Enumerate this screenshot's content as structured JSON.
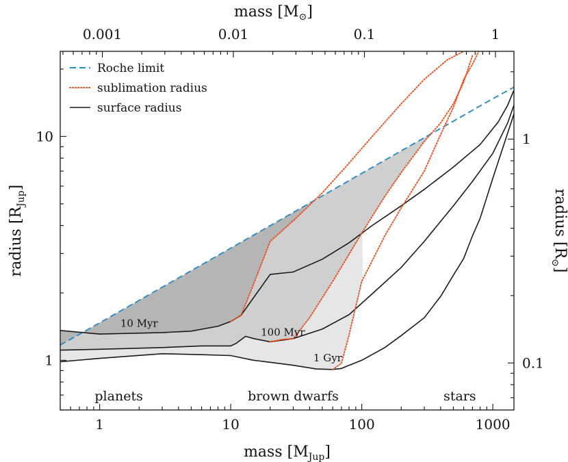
{
  "chart_data": {
    "type": "line",
    "x_axis": {
      "label": "mass [M",
      "sub": "Jup",
      "suffix": "]",
      "scale": "log",
      "lim": [
        0.5,
        1450
      ],
      "ticks": [
        1,
        10,
        100,
        1000
      ],
      "tick_labels": [
        "1",
        "10",
        "100",
        "1000"
      ]
    },
    "y_axis": {
      "label": "radius [R",
      "sub": "Jup",
      "suffix": "]",
      "scale": "log",
      "lim": [
        0.6,
        24
      ],
      "ticks": [
        1,
        10
      ],
      "tick_labels": [
        "1",
        "10"
      ]
    },
    "top_axis": {
      "label": "mass [M",
      "sub": "⊙",
      "suffix": "]",
      "ticks_rjup_equiv": [
        1.048,
        10.48,
        104.8,
        1048
      ],
      "tick_labels": [
        "0.001",
        "0.01",
        "0.1",
        "1"
      ]
    },
    "right_axis": {
      "label": "radius [R",
      "sub": "⊙",
      "suffix": "]",
      "ticks_rjup_equiv": [
        0.973,
        9.73
      ],
      "tick_labels": [
        "0.1",
        "1"
      ]
    },
    "legend": [
      {
        "label": "Roche limit",
        "style": "dashed",
        "color": "#2b8cbe"
      },
      {
        "label": "sublimation radius",
        "style": "dotted",
        "color": "#e8501e"
      },
      {
        "label": "surface radius",
        "style": "solid",
        "color": "#1a1a1a"
      }
    ],
    "series": [
      {
        "name": "Roche limit",
        "color": "#2b8cbe",
        "style": "dashed",
        "x": [
          0.5,
          1,
          10,
          100,
          1000,
          1450
        ],
        "y": [
          1.17,
          1.47,
          3.17,
          6.84,
          14.75,
          16.6
        ]
      },
      {
        "name": "surface radius 10 Myr",
        "color": "#1a1a1a",
        "style": "solid",
        "x": [
          0.5,
          1,
          3,
          5,
          8,
          10,
          12,
          15,
          20,
          30,
          50,
          80,
          120,
          200,
          300,
          500,
          800,
          1100,
          1300,
          1450
        ],
        "y": [
          1.36,
          1.31,
          1.33,
          1.35,
          1.42,
          1.49,
          1.59,
          1.91,
          2.42,
          2.48,
          2.83,
          3.35,
          4.0,
          4.9,
          5.8,
          7.3,
          9.2,
          11.6,
          13.8,
          16.1
        ]
      },
      {
        "name": "surface radius 100 Myr",
        "color": "#1a1a1a",
        "style": "solid",
        "x": [
          0.5,
          1,
          3,
          6,
          10,
          11,
          13,
          15,
          20,
          30,
          50,
          80,
          120,
          200,
          300,
          500,
          700,
          1000,
          1300,
          1450
        ],
        "y": [
          1.11,
          1.12,
          1.14,
          1.16,
          1.16,
          1.19,
          1.28,
          1.25,
          1.21,
          1.25,
          1.38,
          1.6,
          1.98,
          2.6,
          3.4,
          4.9,
          6.3,
          8.4,
          11.5,
          13.8
        ]
      },
      {
        "name": "surface radius 1 Gyr",
        "color": "#1a1a1a",
        "style": "solid",
        "x": [
          0.5,
          1,
          3,
          6,
          10,
          15,
          20,
          30,
          45,
          60,
          70,
          80,
          100,
          150,
          200,
          300,
          400,
          500,
          600,
          700,
          800,
          1000,
          1200,
          1450
        ],
        "y": [
          0.985,
          1.02,
          1.07,
          1.06,
          1.05,
          1.0,
          0.98,
          0.95,
          0.915,
          0.91,
          0.92,
          0.95,
          1.0,
          1.14,
          1.29,
          1.55,
          1.93,
          2.4,
          2.85,
          3.6,
          4.3,
          6.5,
          9.0,
          12.6
        ]
      },
      {
        "name": "sublimation radius 10 Myr",
        "color": "#e8501e",
        "style": "dotted",
        "x": [
          10,
          12,
          15,
          20,
          30,
          50,
          80,
          120,
          200,
          300,
          450,
          600
        ],
        "y": [
          1.49,
          1.59,
          2.2,
          3.4,
          4.2,
          5.6,
          7.6,
          10.0,
          14.0,
          18.0,
          22.0,
          24.0
        ]
      },
      {
        "name": "sublimation radius 100 Myr",
        "color": "#e8501e",
        "style": "dotted",
        "x": [
          20,
          25,
          30,
          40,
          60,
          100,
          150,
          200,
          300,
          400,
          500,
          600,
          700
        ],
        "y": [
          1.21,
          1.24,
          1.25,
          1.55,
          2.25,
          3.7,
          5.4,
          6.9,
          9.5,
          11.5,
          14.0,
          17.5,
          23.0
        ]
      },
      {
        "name": "sublimation radius 1 Gyr",
        "color": "#e8501e",
        "style": "dotted",
        "x": [
          60,
          70,
          80,
          100,
          150,
          200,
          300,
          400,
          500,
          600,
          700,
          780
        ],
        "y": [
          0.91,
          0.97,
          1.3,
          2.25,
          3.6,
          4.8,
          7.0,
          10.2,
          13.5,
          18.0,
          21.0,
          24.0
        ]
      }
    ],
    "annotations": [
      {
        "text": "10 Myr",
        "x": 2.0,
        "y": 1.41
      },
      {
        "text": "100 Myr",
        "x": 25,
        "y": 1.29
      },
      {
        "text": "1 Gyr",
        "x": 55,
        "y": 0.99
      }
    ],
    "regions": [
      {
        "text": "planets",
        "x": 1.4,
        "y": 0.68
      },
      {
        "text": "brown dwarfs",
        "x": 30,
        "y": 0.68
      },
      {
        "text": "stars",
        "x": 560,
        "y": 0.68
      }
    ]
  }
}
